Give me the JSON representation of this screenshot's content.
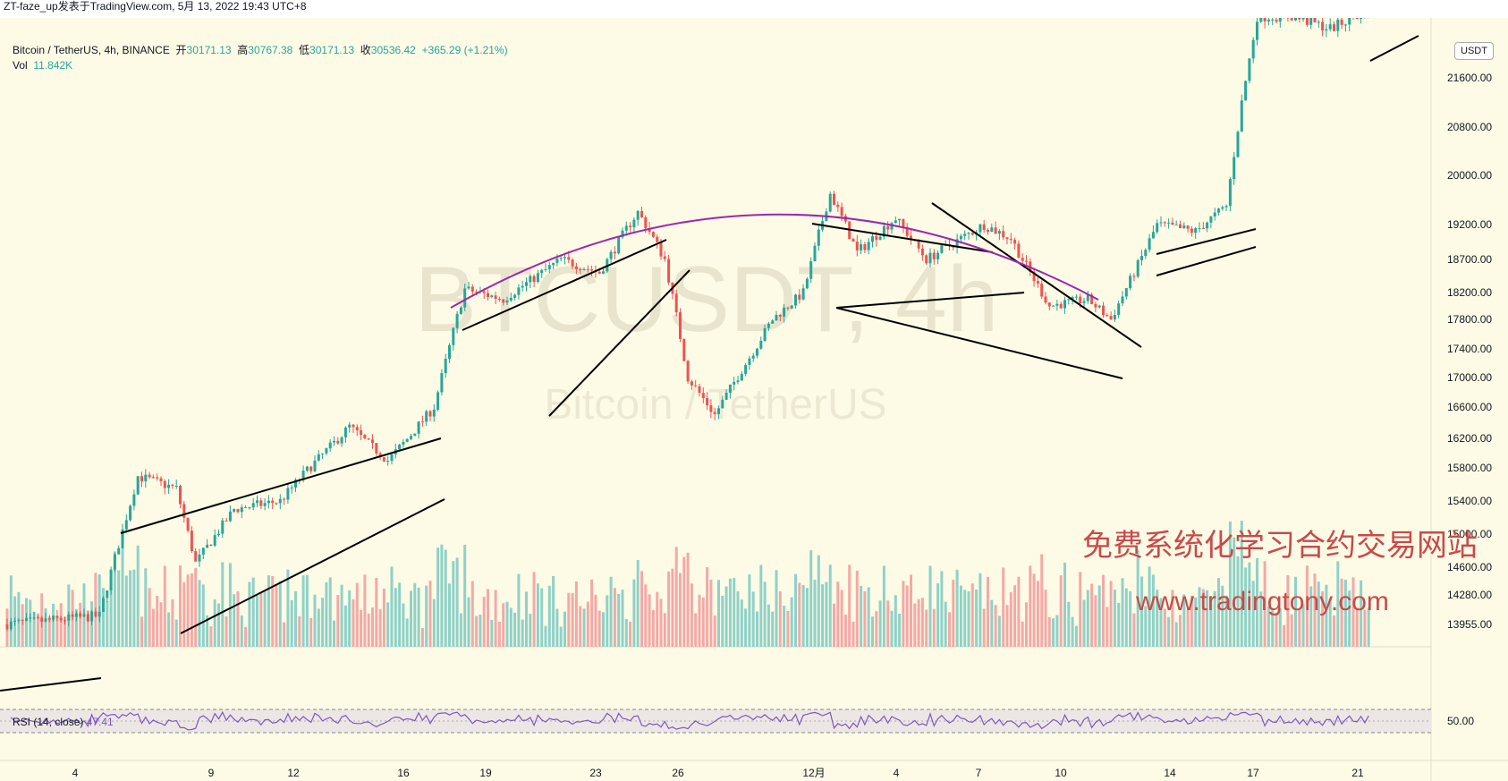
{
  "topbar": {
    "text": "ZT-faze_up发表于TradingView.com, 5月 13, 2022 19:43 UTC+8"
  },
  "legend": {
    "symbol": "Bitcoin / TetherUS, 4h, BINANCE",
    "open_label": "开",
    "open": "30171.13",
    "high_label": "高",
    "high": "30767.38",
    "low_label": "低",
    "low": "30171.13",
    "close_label": "收",
    "close": "30536.42",
    "change": "+365.29 (+1.21%)",
    "vol_label": "Vol",
    "vol": "11.842K"
  },
  "rsi": {
    "label": "RSI (14, close)",
    "value": "47.41",
    "axis_label": "50.00"
  },
  "watermark": {
    "ticker": "BTCUSDT, 4h",
    "name": "Bitcoin / TetherUS",
    "promo_cn": "免费系统化学习合约交易网站",
    "promo_url": "www.tradingtony.com"
  },
  "currency_badge": "USDT",
  "colors": {
    "up": "#26a69a",
    "down": "#ef5350",
    "up_vol": "#8fd1c8",
    "down_vol": "#f4a9a6",
    "arc": "#9c27b0",
    "rsi": "#7e57c2",
    "background": "#fdfbe6",
    "promo": "#c94a4a"
  },
  "chart_data": {
    "type": "candlestick",
    "title": "Bitcoin / TetherUS, 4h, BINANCE",
    "price_axis": [
      "21600.00",
      "20800.00",
      "20000.00",
      "19200.00",
      "18700.00",
      "18200.00",
      "17800.00",
      "17400.00",
      "17000.00",
      "16600.00",
      "16200.00",
      "15800.00",
      "15400.00",
      "15000.00",
      "14600.00",
      "14280.00",
      "13955.00"
    ],
    "time_axis": [
      "4",
      "9",
      "12",
      "16",
      "19",
      "23",
      "26",
      "12月",
      "4",
      "7",
      "10",
      "14",
      "17",
      "21"
    ],
    "series_anchors": [
      {
        "t": 0,
        "p": 13955
      },
      {
        "t": 25,
        "p": 14050
      },
      {
        "t": 35,
        "p": 15700
      },
      {
        "t": 45,
        "p": 15550
      },
      {
        "t": 50,
        "p": 14650
      },
      {
        "t": 60,
        "p": 15300
      },
      {
        "t": 72,
        "p": 15400
      },
      {
        "t": 90,
        "p": 16350
      },
      {
        "t": 100,
        "p": 15900
      },
      {
        "t": 112,
        "p": 16600
      },
      {
        "t": 120,
        "p": 18250
      },
      {
        "t": 130,
        "p": 18100
      },
      {
        "t": 145,
        "p": 18700
      },
      {
        "t": 155,
        "p": 18500
      },
      {
        "t": 165,
        "p": 19400
      },
      {
        "t": 172,
        "p": 18700
      },
      {
        "t": 178,
        "p": 17000
      },
      {
        "t": 185,
        "p": 16500
      },
      {
        "t": 200,
        "p": 17800
      },
      {
        "t": 208,
        "p": 18200
      },
      {
        "t": 215,
        "p": 19700
      },
      {
        "t": 222,
        "p": 18800
      },
      {
        "t": 232,
        "p": 19300
      },
      {
        "t": 240,
        "p": 18700
      },
      {
        "t": 255,
        "p": 19200
      },
      {
        "t": 262,
        "p": 19000
      },
      {
        "t": 272,
        "p": 18000
      },
      {
        "t": 282,
        "p": 18100
      },
      {
        "t": 288,
        "p": 17800
      },
      {
        "t": 300,
        "p": 19200
      },
      {
        "t": 310,
        "p": 19100
      },
      {
        "t": 318,
        "p": 19500
      },
      {
        "t": 322,
        "p": 21200
      },
      {
        "t": 326,
        "p": 22600
      },
      {
        "t": 335,
        "p": 22600
      },
      {
        "t": 345,
        "p": 22400
      },
      {
        "t": 355,
        "p": 22700
      }
    ]
  }
}
